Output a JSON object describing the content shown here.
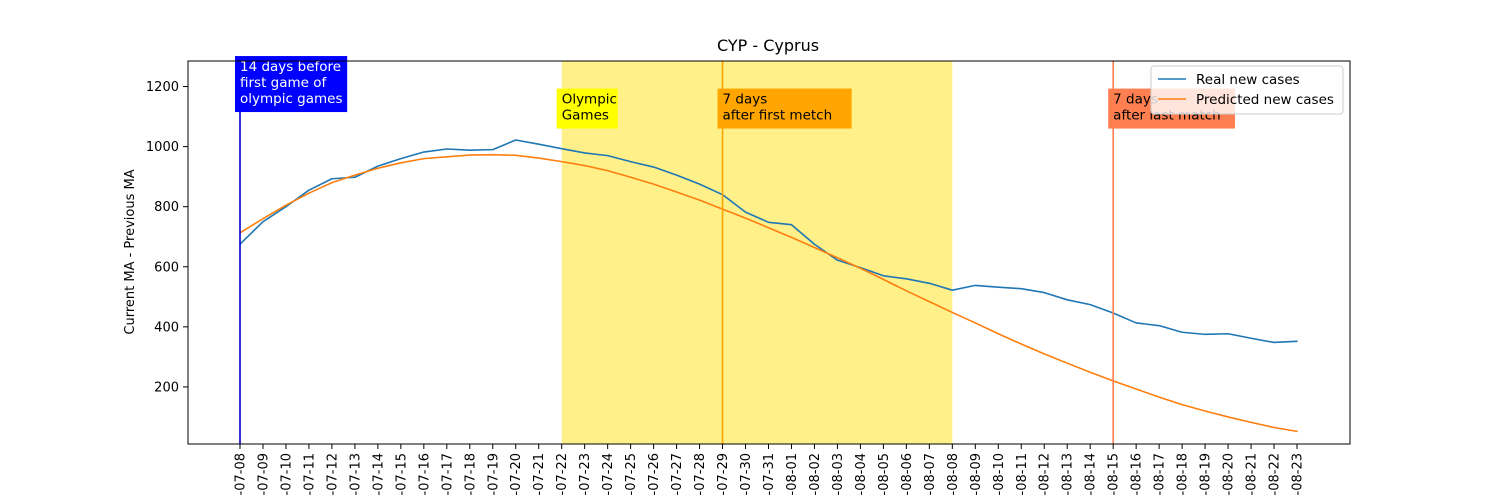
{
  "chart_data": {
    "type": "line",
    "title": "CYP - Cyprus",
    "xlabel": "",
    "ylabel": "Current MA - Previous MA",
    "x": [
      "2021-07-08",
      "2021-07-09",
      "2021-07-10",
      "2021-07-11",
      "2021-07-12",
      "2021-07-13",
      "2021-07-14",
      "2021-07-15",
      "2021-07-16",
      "2021-07-17",
      "2021-07-18",
      "2021-07-19",
      "2021-07-20",
      "2021-07-21",
      "2021-07-22",
      "2021-07-23",
      "2021-07-24",
      "2021-07-25",
      "2021-07-26",
      "2021-07-27",
      "2021-07-28",
      "2021-07-29",
      "2021-07-30",
      "2021-07-31",
      "2021-08-01",
      "2021-08-02",
      "2021-08-03",
      "2021-08-04",
      "2021-08-05",
      "2021-08-06",
      "2021-08-07",
      "2021-08-08",
      "2021-08-09",
      "2021-08-10",
      "2021-08-11",
      "2021-08-12",
      "2021-08-13",
      "2021-08-14",
      "2021-08-15",
      "2021-08-16",
      "2021-08-17",
      "2021-08-18",
      "2021-08-19",
      "2021-08-20",
      "2021-08-21",
      "2021-08-22",
      "2021-08-23"
    ],
    "tick_labels": [
      "-07-08",
      "-07-09",
      "-07-10",
      "-07-11",
      "-07-12",
      "-07-13",
      "-07-14",
      "-07-15",
      "-07-16",
      "-07-17",
      "-07-18",
      "-07-19",
      "-07-20",
      "-07-21",
      "-07-22",
      "-07-23",
      "-07-24",
      "-07-25",
      "-07-26",
      "-07-27",
      "-07-28",
      "-07-29",
      "-07-30",
      "-07-31",
      "-08-01",
      "-08-02",
      "-08-03",
      "-08-04",
      "-08-05",
      "-08-06",
      "-08-07",
      "-08-08",
      "-08-09",
      "-08-10",
      "-08-11",
      "-08-12",
      "-08-13",
      "-08-14",
      "-08-15",
      "-08-16",
      "-08-17",
      "-08-18",
      "-08-19",
      "-08-20",
      "-08-21",
      "-08-22",
      "-08-23"
    ],
    "yticks": [
      200,
      400,
      600,
      800,
      1000,
      1200
    ],
    "ylim": [
      10,
      1285
    ],
    "grid": false,
    "legend_position": "top-right",
    "series": [
      {
        "name": "Real new cases",
        "color": "#1f77b4",
        "values": [
          675,
          750,
          800,
          855,
          893,
          898,
          935,
          960,
          982,
          992,
          988,
          990,
          1022,
          1008,
          993,
          979,
          970,
          950,
          932,
          905,
          875,
          840,
          782,
          748,
          740,
          675,
          622,
          597,
          570,
          560,
          545,
          522,
          538,
          532,
          527,
          514,
          490,
          474,
          446,
          413,
          404,
          382,
          375,
          377,
          362,
          348,
          352
        ]
      },
      {
        "name": "Predicted new cases",
        "color": "#ff7f0e",
        "values": [
          713,
          760,
          805,
          845,
          880,
          905,
          928,
          946,
          960,
          966,
          972,
          973,
          971,
          962,
          950,
          937,
          920,
          898,
          875,
          849,
          822,
          792,
          762,
          730,
          698,
          664,
          630,
          595,
          558,
          520,
          484,
          448,
          413,
          377,
          343,
          310,
          279,
          249,
          220,
          193,
          166,
          141,
          120,
          100,
          82,
          65,
          52
        ]
      }
    ],
    "shaded_regions": [
      {
        "start": "2021-07-22",
        "end": "2021-08-08",
        "color": "#fff08a"
      }
    ],
    "vertical_lines": [
      {
        "x": "2021-07-08",
        "color": "#0000cc"
      },
      {
        "x": "2021-07-29",
        "color": "#ffa500"
      },
      {
        "x": "2021-08-15",
        "color": "#ff7f50"
      }
    ],
    "annotations": [
      {
        "x": "2021-07-08",
        "y": 1155,
        "lines": [
          "14 days before",
          "first game of",
          "olympic games"
        ],
        "bg": "#0000ff",
        "fg": "#ffffff"
      },
      {
        "x": "2021-07-22",
        "y": 1100,
        "lines": [
          "Olympic",
          "Games"
        ],
        "bg": "#ffff00",
        "fg": "#000000"
      },
      {
        "x": "2021-07-29",
        "y": 1100,
        "lines": [
          "7 days",
          "after first metch"
        ],
        "bg": "#ffa500",
        "fg": "#000000"
      },
      {
        "x": "2021-08-15",
        "y": 1100,
        "lines": [
          "7 days",
          "after last match"
        ],
        "bg": "#ff7f50",
        "fg": "#000000"
      }
    ]
  }
}
